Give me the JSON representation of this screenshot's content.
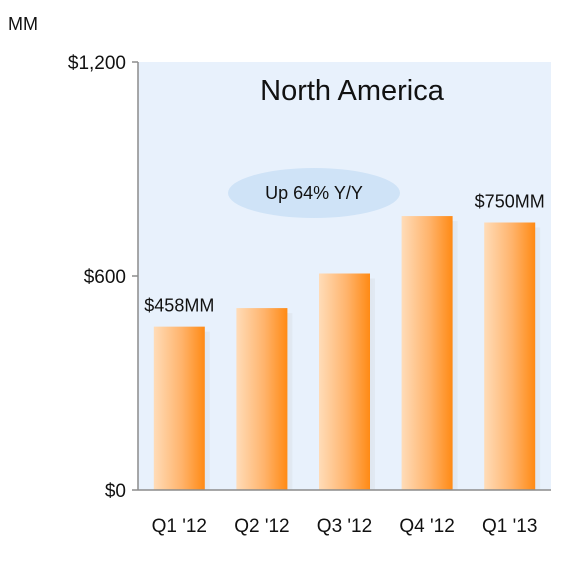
{
  "chart_data": {
    "type": "bar",
    "title": "North America",
    "unit_label": "MM",
    "categories": [
      "Q1 '12",
      "Q2 '12",
      "Q3 '12",
      "Q4 '12",
      "Q1 '13"
    ],
    "values": [
      458,
      510,
      607,
      768,
      750
    ],
    "ylim": [
      0,
      1200
    ],
    "yticks": [
      {
        "value": 0,
        "label": "$0"
      },
      {
        "value": 600,
        "label": "$600"
      },
      {
        "value": 1200,
        "label": "$1,200"
      }
    ],
    "data_labels": [
      {
        "index": 0,
        "text": "$458MM"
      },
      {
        "index": 4,
        "text": "$750MM"
      }
    ],
    "annotation": "Up 64% Y/Y",
    "grid": false,
    "colors": {
      "plot_background": "#e8f1fc",
      "bar_light": "#ffd9b0",
      "bar_dark": "#ff8c1a",
      "annotation_fill": "#cfe3f7"
    }
  }
}
